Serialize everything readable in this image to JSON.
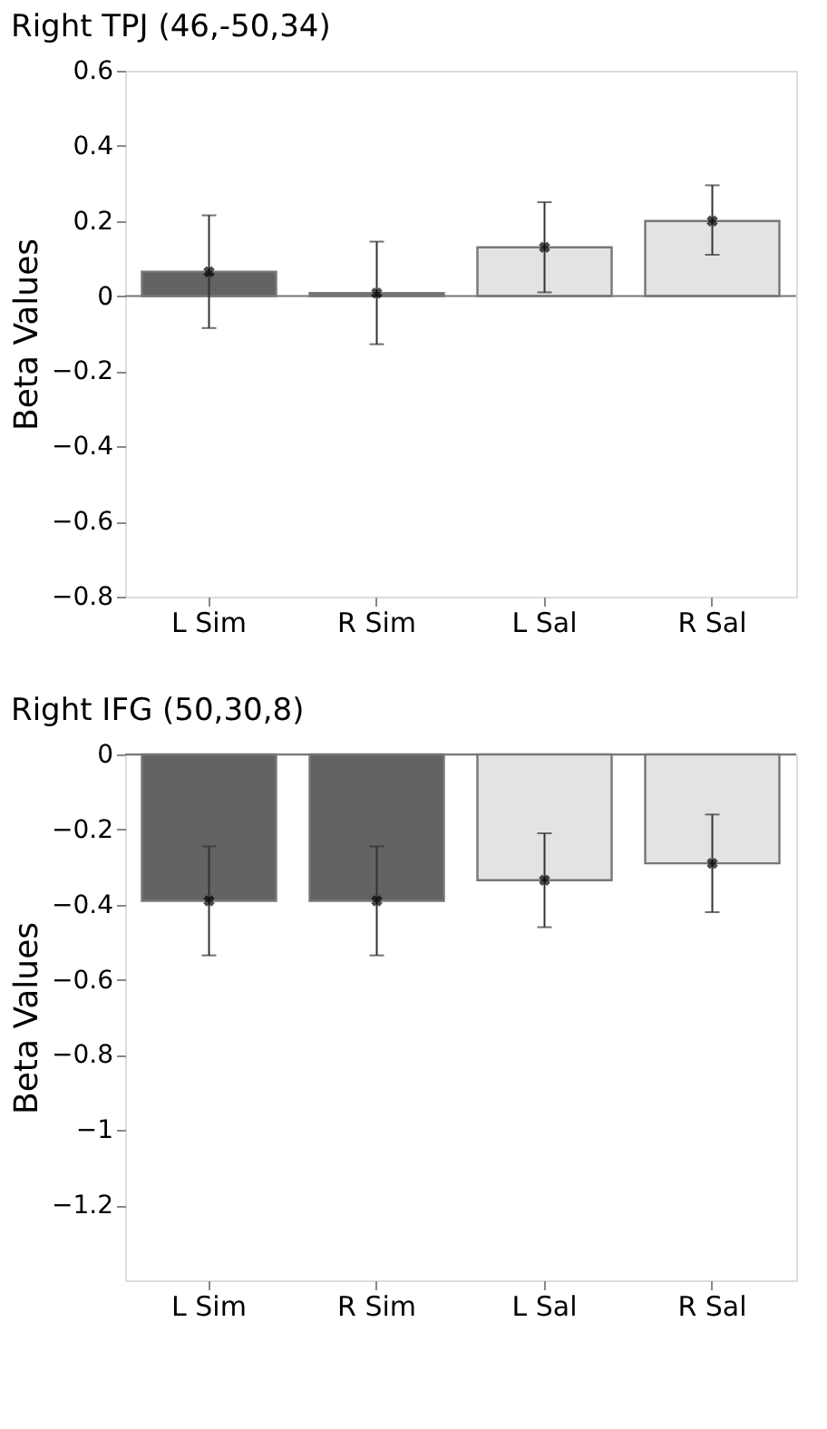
{
  "chart_data": [
    {
      "type": "bar",
      "title": "Right TPJ (46,-50,34)",
      "ylabel": "Beta Values",
      "categories": [
        "L Sim",
        "R Sim",
        "L Sal",
        "R Sal"
      ],
      "series": [
        {
          "values": [
            0.065,
            0.008,
            0.13,
            0.2
          ],
          "colors": [
            "#636363",
            "#636363",
            "#e3e3e3",
            "#e3e3e3"
          ],
          "errors": [
            [
              -0.085,
              0.215
            ],
            [
              -0.128,
              0.145
            ],
            [
              0.01,
              0.25
            ],
            [
              0.11,
              0.295
            ]
          ]
        },
        {
          "type": "scatter",
          "values": [
            0.065,
            0.008,
            0.13,
            0.2
          ],
          "color": "#000000",
          "marker": "cross"
        }
      ],
      "ylim": [
        -0.8,
        0.6
      ],
      "yticks": [
        -0.8,
        -0.6,
        -0.4,
        -0.2,
        0,
        0.2,
        0.4,
        0.6
      ]
    },
    {
      "type": "bar",
      "title": "Right IFG (50,30,8)",
      "ylabel": "Beta Values",
      "categories": [
        "L Sim",
        "R Sim",
        "L Sal",
        "R Sal"
      ],
      "series": [
        {
          "values": [
            -0.39,
            -0.39,
            -0.335,
            -0.29
          ],
          "colors": [
            "#636363",
            "#636363",
            "#e3e3e3",
            "#e3e3e3"
          ],
          "errors": [
            [
              -0.535,
              -0.245
            ],
            [
              -0.535,
              -0.245
            ],
            [
              -0.46,
              -0.21
            ],
            [
              -0.42,
              -0.16
            ]
          ]
        },
        {
          "type": "scatter",
          "values": [
            -0.39,
            -0.39,
            -0.335,
            -0.29
          ],
          "color": "#000000",
          "marker": "cross"
        }
      ],
      "ylim": [
        -1.4,
        0
      ],
      "yticks": [
        -1.2,
        -1,
        -0.8,
        -0.6,
        -0.4,
        -0.2,
        0
      ]
    }
  ]
}
